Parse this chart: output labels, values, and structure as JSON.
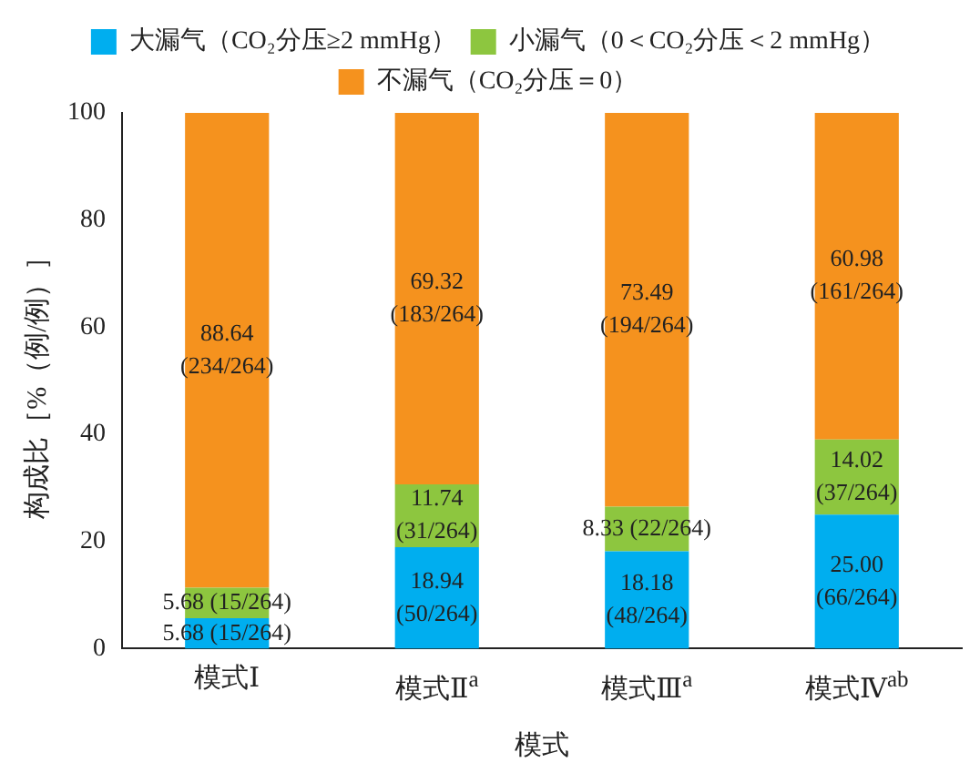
{
  "chart_data": {
    "type": "bar",
    "stacked": true,
    "categories": [
      "模式Ⅰ",
      "模式Ⅱ$^{a}$",
      "模式Ⅲ$^{a}$",
      "模式Ⅳ$^{ab}$"
    ],
    "xlabel": "模式",
    "ylabel": "构成比［%（例/例）］",
    "ylim": [
      0,
      100
    ],
    "yticks": [
      0,
      20,
      40,
      60,
      80,
      100
    ],
    "grid": false,
    "legend": "top",
    "series": [
      {
        "name": "大漏气（CO₂分压≥2 mmHg）",
        "color": "#00aeef",
        "values": [
          5.68,
          18.94,
          18.18,
          25.0
        ],
        "value_labels": [
          "5.68 (15/264)",
          "18.94 (50/264)",
          "18.18 (48/264)",
          "25.00 (66/264)"
        ]
      },
      {
        "name": "小漏气（0＜CO₂分压＜2 mmHg）",
        "color": "#8dc63f",
        "values": [
          5.68,
          11.74,
          8.33,
          14.02
        ],
        "value_labels": [
          "5.68 (15/264)",
          "11.74 (31/264)",
          "8.33 (22/264)",
          "14.02 (37/264)"
        ]
      },
      {
        "name": "不漏气（CO₂分压＝0）",
        "color": "#f5921e",
        "values": [
          88.64,
          69.32,
          73.49,
          60.98
        ],
        "value_labels": [
          "88.64 (234/264)",
          "69.32 (183/264)",
          "73.49 (194/264)",
          "60.98 (161/264)"
        ]
      }
    ]
  }
}
